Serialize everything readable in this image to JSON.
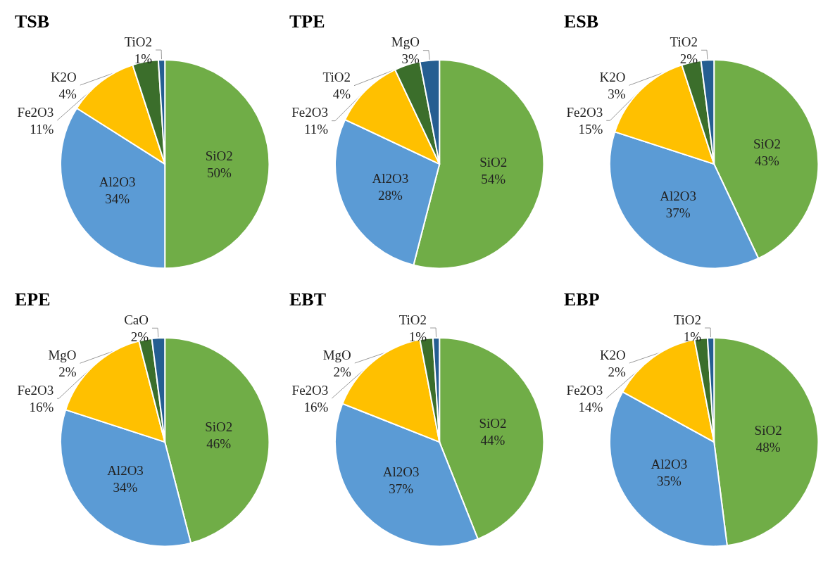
{
  "chart_data": [
    {
      "type": "pie",
      "title": "TSB",
      "categories": [
        "SiO2",
        "Al2O3",
        "Fe2O3",
        "K2O",
        "TiO2"
      ],
      "values": [
        50,
        34,
        11,
        4,
        1
      ],
      "value_labels": [
        "50%",
        "34%",
        "11%",
        "4%",
        "1%"
      ],
      "colors": [
        "#70ad47",
        "#5b9bd5",
        "#ffc000",
        "#3b6e2b",
        "#255e91"
      ],
      "legend": false
    },
    {
      "type": "pie",
      "title": "TPE",
      "categories": [
        "SiO2",
        "Al2O3",
        "Fe2O3",
        "TiO2",
        "MgO"
      ],
      "values": [
        54,
        28,
        11,
        4,
        3
      ],
      "value_labels": [
        "54%",
        "28%",
        "11%",
        "4%",
        "3%"
      ],
      "colors": [
        "#70ad47",
        "#5b9bd5",
        "#ffc000",
        "#3b6e2b",
        "#255e91"
      ],
      "legend": false
    },
    {
      "type": "pie",
      "title": "ESB",
      "categories": [
        "SiO2",
        "Al2O3",
        "Fe2O3",
        "K2O",
        "TiO2"
      ],
      "values": [
        43,
        37,
        15,
        3,
        2
      ],
      "value_labels": [
        "43%",
        "37%",
        "15%",
        "3%",
        "2%"
      ],
      "colors": [
        "#70ad47",
        "#5b9bd5",
        "#ffc000",
        "#3b6e2b",
        "#255e91"
      ],
      "legend": false
    },
    {
      "type": "pie",
      "title": "EPE",
      "categories": [
        "SiO2",
        "Al2O3",
        "Fe2O3",
        "MgO",
        "CaO"
      ],
      "values": [
        46,
        34,
        16,
        2,
        2
      ],
      "value_labels": [
        "46%",
        "34%",
        "16%",
        "2%",
        "2%"
      ],
      "colors": [
        "#70ad47",
        "#5b9bd5",
        "#ffc000",
        "#3b6e2b",
        "#255e91"
      ],
      "legend": false
    },
    {
      "type": "pie",
      "title": "EBT",
      "categories": [
        "SiO2",
        "Al2O3",
        "Fe2O3",
        "MgO",
        "TiO2"
      ],
      "values": [
        44,
        37,
        16,
        2,
        1
      ],
      "value_labels": [
        "44%",
        "37%",
        "16%",
        "2%",
        "1%"
      ],
      "colors": [
        "#70ad47",
        "#5b9bd5",
        "#ffc000",
        "#3b6e2b",
        "#255e91"
      ],
      "legend": false
    },
    {
      "type": "pie",
      "title": "EBP",
      "categories": [
        "SiO2",
        "Al2O3",
        "Fe2O3",
        "K2O",
        "TiO2"
      ],
      "values": [
        48,
        35,
        14,
        2,
        1
      ],
      "value_labels": [
        "48%",
        "35%",
        "14%",
        "2%",
        "1%"
      ],
      "colors": [
        "#70ad47",
        "#5b9bd5",
        "#ffc000",
        "#3b6e2b",
        "#255e91"
      ],
      "legend": false
    }
  ]
}
